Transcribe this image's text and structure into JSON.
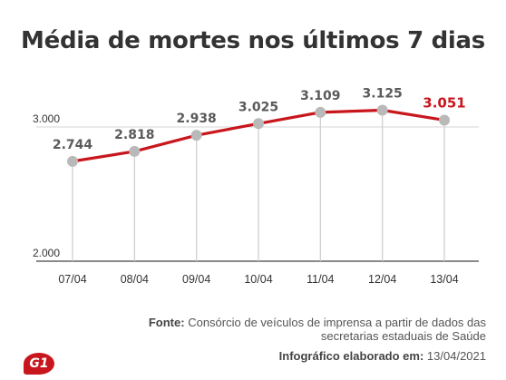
{
  "title": "Média de mortes nos últimos 7 dias",
  "chart_data": {
    "type": "line",
    "title": "Média de mortes nos últimos 7 dias",
    "categories": [
      "07/04",
      "08/04",
      "09/04",
      "10/04",
      "11/04",
      "12/04",
      "13/04"
    ],
    "series": [
      {
        "values": [
          2744,
          2818,
          2938,
          3025,
          3109,
          3125,
          3051
        ],
        "labels": [
          "2.744",
          "2.818",
          "2.938",
          "3.025",
          "3.109",
          "3.125",
          "3.051"
        ],
        "color": "#c8161d",
        "highlight_last": true
      }
    ],
    "yticks": [
      {
        "value": 2000,
        "label": "2.000"
      },
      {
        "value": 3000,
        "label": "3.000"
      }
    ],
    "ylim": [
      2000,
      3300
    ],
    "grid": true
  },
  "source": {
    "label": "Fonte:",
    "text": "Consórcio de veículos de imprensa a partir de dados das secretarias estaduais de Saúde"
  },
  "credit": {
    "label": "Infográfico elaborado em:",
    "date": "13/04/2021"
  },
  "logo": {
    "text": "G1",
    "color": "#c8161d"
  }
}
